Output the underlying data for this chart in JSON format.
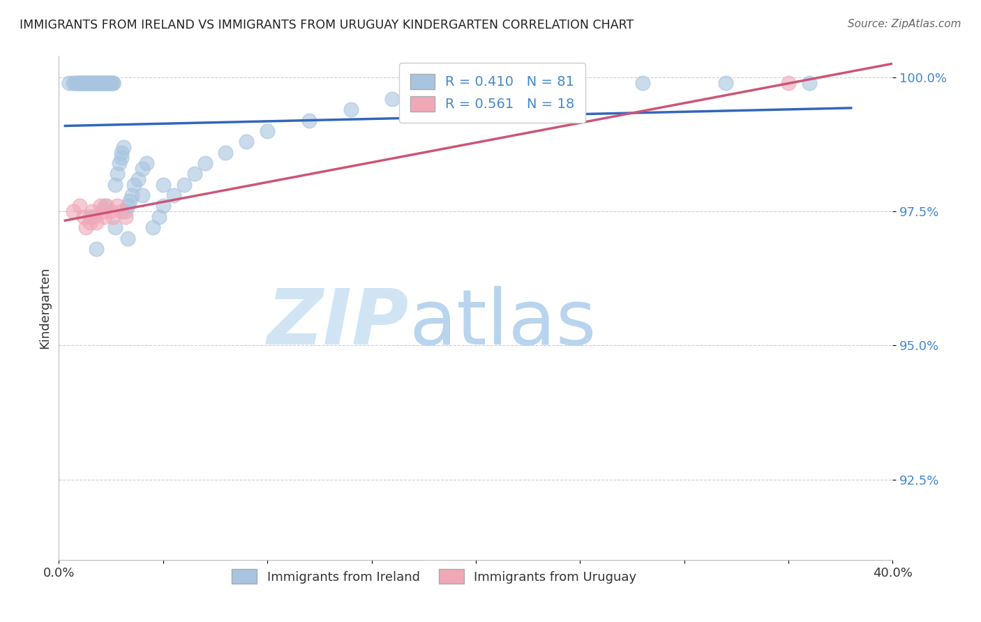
{
  "title": "IMMIGRANTS FROM IRELAND VS IMMIGRANTS FROM URUGUAY KINDERGARTEN CORRELATION CHART",
  "source": "Source: ZipAtlas.com",
  "ylabel": "Kindergarten",
  "xlim": [
    0.0,
    0.4
  ],
  "ylim": [
    0.91,
    1.004
  ],
  "ireland_R": 0.41,
  "ireland_N": 81,
  "uruguay_R": 0.561,
  "uruguay_N": 18,
  "ireland_color": "#a8c4e0",
  "ireland_line_color": "#3366bb",
  "uruguay_color": "#f0a8b8",
  "uruguay_line_color": "#cc5577",
  "yticks": [
    0.925,
    0.95,
    0.975,
    1.0
  ],
  "ytick_labels": [
    "92.5%",
    "95.0%",
    "97.5%",
    "100.0%"
  ],
  "ytick_color": "#4488cc",
  "legend_text_color": "#4488cc",
  "watermark_zip_color": "#d0e4f4",
  "watermark_atlas_color": "#b8d4ee",
  "ireland_x": [
    0.005,
    0.007,
    0.008,
    0.009,
    0.01,
    0.01,
    0.011,
    0.011,
    0.012,
    0.012,
    0.013,
    0.013,
    0.014,
    0.014,
    0.015,
    0.015,
    0.015,
    0.016,
    0.016,
    0.017,
    0.017,
    0.017,
    0.018,
    0.018,
    0.019,
    0.019,
    0.02,
    0.02,
    0.02,
    0.021,
    0.021,
    0.022,
    0.022,
    0.023,
    0.023,
    0.024,
    0.024,
    0.024,
    0.025,
    0.025,
    0.026,
    0.026,
    0.027,
    0.028,
    0.029,
    0.03,
    0.03,
    0.031,
    0.032,
    0.033,
    0.034,
    0.035,
    0.036,
    0.038,
    0.04,
    0.042,
    0.045,
    0.048,
    0.05,
    0.055,
    0.06,
    0.065,
    0.07,
    0.08,
    0.09,
    0.1,
    0.12,
    0.14,
    0.16,
    0.2,
    0.24,
    0.28,
    0.32,
    0.36,
    0.015,
    0.022,
    0.027,
    0.033,
    0.018,
    0.04,
    0.05
  ],
  "ireland_y": [
    0.999,
    0.999,
    0.999,
    0.999,
    0.999,
    0.999,
    0.999,
    0.999,
    0.999,
    0.999,
    0.999,
    0.999,
    0.999,
    0.999,
    0.999,
    0.999,
    0.999,
    0.999,
    0.999,
    0.999,
    0.999,
    0.999,
    0.999,
    0.999,
    0.999,
    0.999,
    0.999,
    0.999,
    0.999,
    0.999,
    0.999,
    0.999,
    0.999,
    0.999,
    0.999,
    0.999,
    0.999,
    0.999,
    0.999,
    0.999,
    0.999,
    0.999,
    0.98,
    0.982,
    0.984,
    0.985,
    0.986,
    0.987,
    0.975,
    0.976,
    0.977,
    0.978,
    0.98,
    0.981,
    0.983,
    0.984,
    0.972,
    0.974,
    0.976,
    0.978,
    0.98,
    0.982,
    0.984,
    0.986,
    0.988,
    0.99,
    0.992,
    0.994,
    0.996,
    0.998,
    0.999,
    0.999,
    0.999,
    0.999,
    0.974,
    0.976,
    0.972,
    0.97,
    0.968,
    0.978,
    0.98
  ],
  "uruguay_x": [
    0.007,
    0.01,
    0.012,
    0.013,
    0.015,
    0.016,
    0.017,
    0.018,
    0.02,
    0.021,
    0.022,
    0.023,
    0.025,
    0.026,
    0.028,
    0.03,
    0.032,
    0.35
  ],
  "uruguay_y": [
    0.975,
    0.976,
    0.974,
    0.972,
    0.973,
    0.975,
    0.974,
    0.973,
    0.976,
    0.975,
    0.974,
    0.976,
    0.975,
    0.974,
    0.976,
    0.975,
    0.974,
    0.999
  ],
  "ireland_line_x": [
    0.003,
    0.38
  ],
  "ireland_line_y": [
    0.98,
    0.999
  ],
  "uruguay_line_x": [
    0.003,
    0.38
  ],
  "uruguay_line_y": [
    0.967,
    0.998
  ]
}
